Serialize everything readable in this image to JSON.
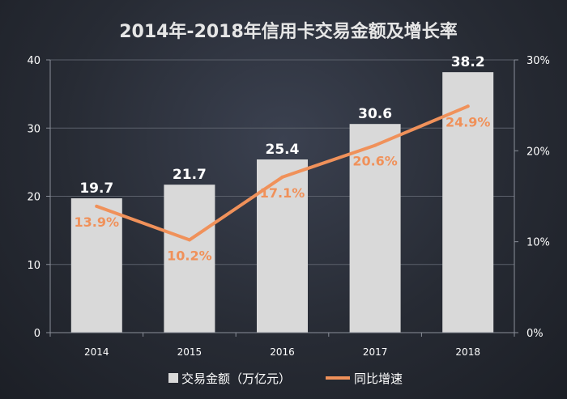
{
  "chart_data": {
    "type": "bar",
    "title": "2014年-2018年信用卡交易金额及增长率",
    "categories": [
      "2014",
      "2015",
      "2016",
      "2017",
      "2018"
    ],
    "series": [
      {
        "name": "交易金额（万亿元）",
        "type": "bar",
        "axis": "left",
        "values": [
          19.7,
          21.7,
          25.4,
          30.6,
          38.2
        ],
        "labels": [
          "19.7",
          "21.7",
          "25.4",
          "30.6",
          "38.2"
        ],
        "color": "#d9d9d9"
      },
      {
        "name": "同比增速",
        "type": "line",
        "axis": "right",
        "values": [
          13.9,
          10.2,
          17.1,
          20.6,
          24.9
        ],
        "labels": [
          "13.9%",
          "10.2%",
          "17.1%",
          "20.6%",
          "24.9%"
        ],
        "color": "#f0915a"
      }
    ],
    "y_left": {
      "min": 0,
      "max": 40,
      "ticks": [
        "0",
        "10",
        "20",
        "30",
        "40"
      ]
    },
    "y_right": {
      "min": 0,
      "max": 30,
      "ticks": [
        "0%",
        "10%",
        "20%",
        "30%"
      ]
    },
    "grid": true,
    "legend_position": "bottom"
  }
}
